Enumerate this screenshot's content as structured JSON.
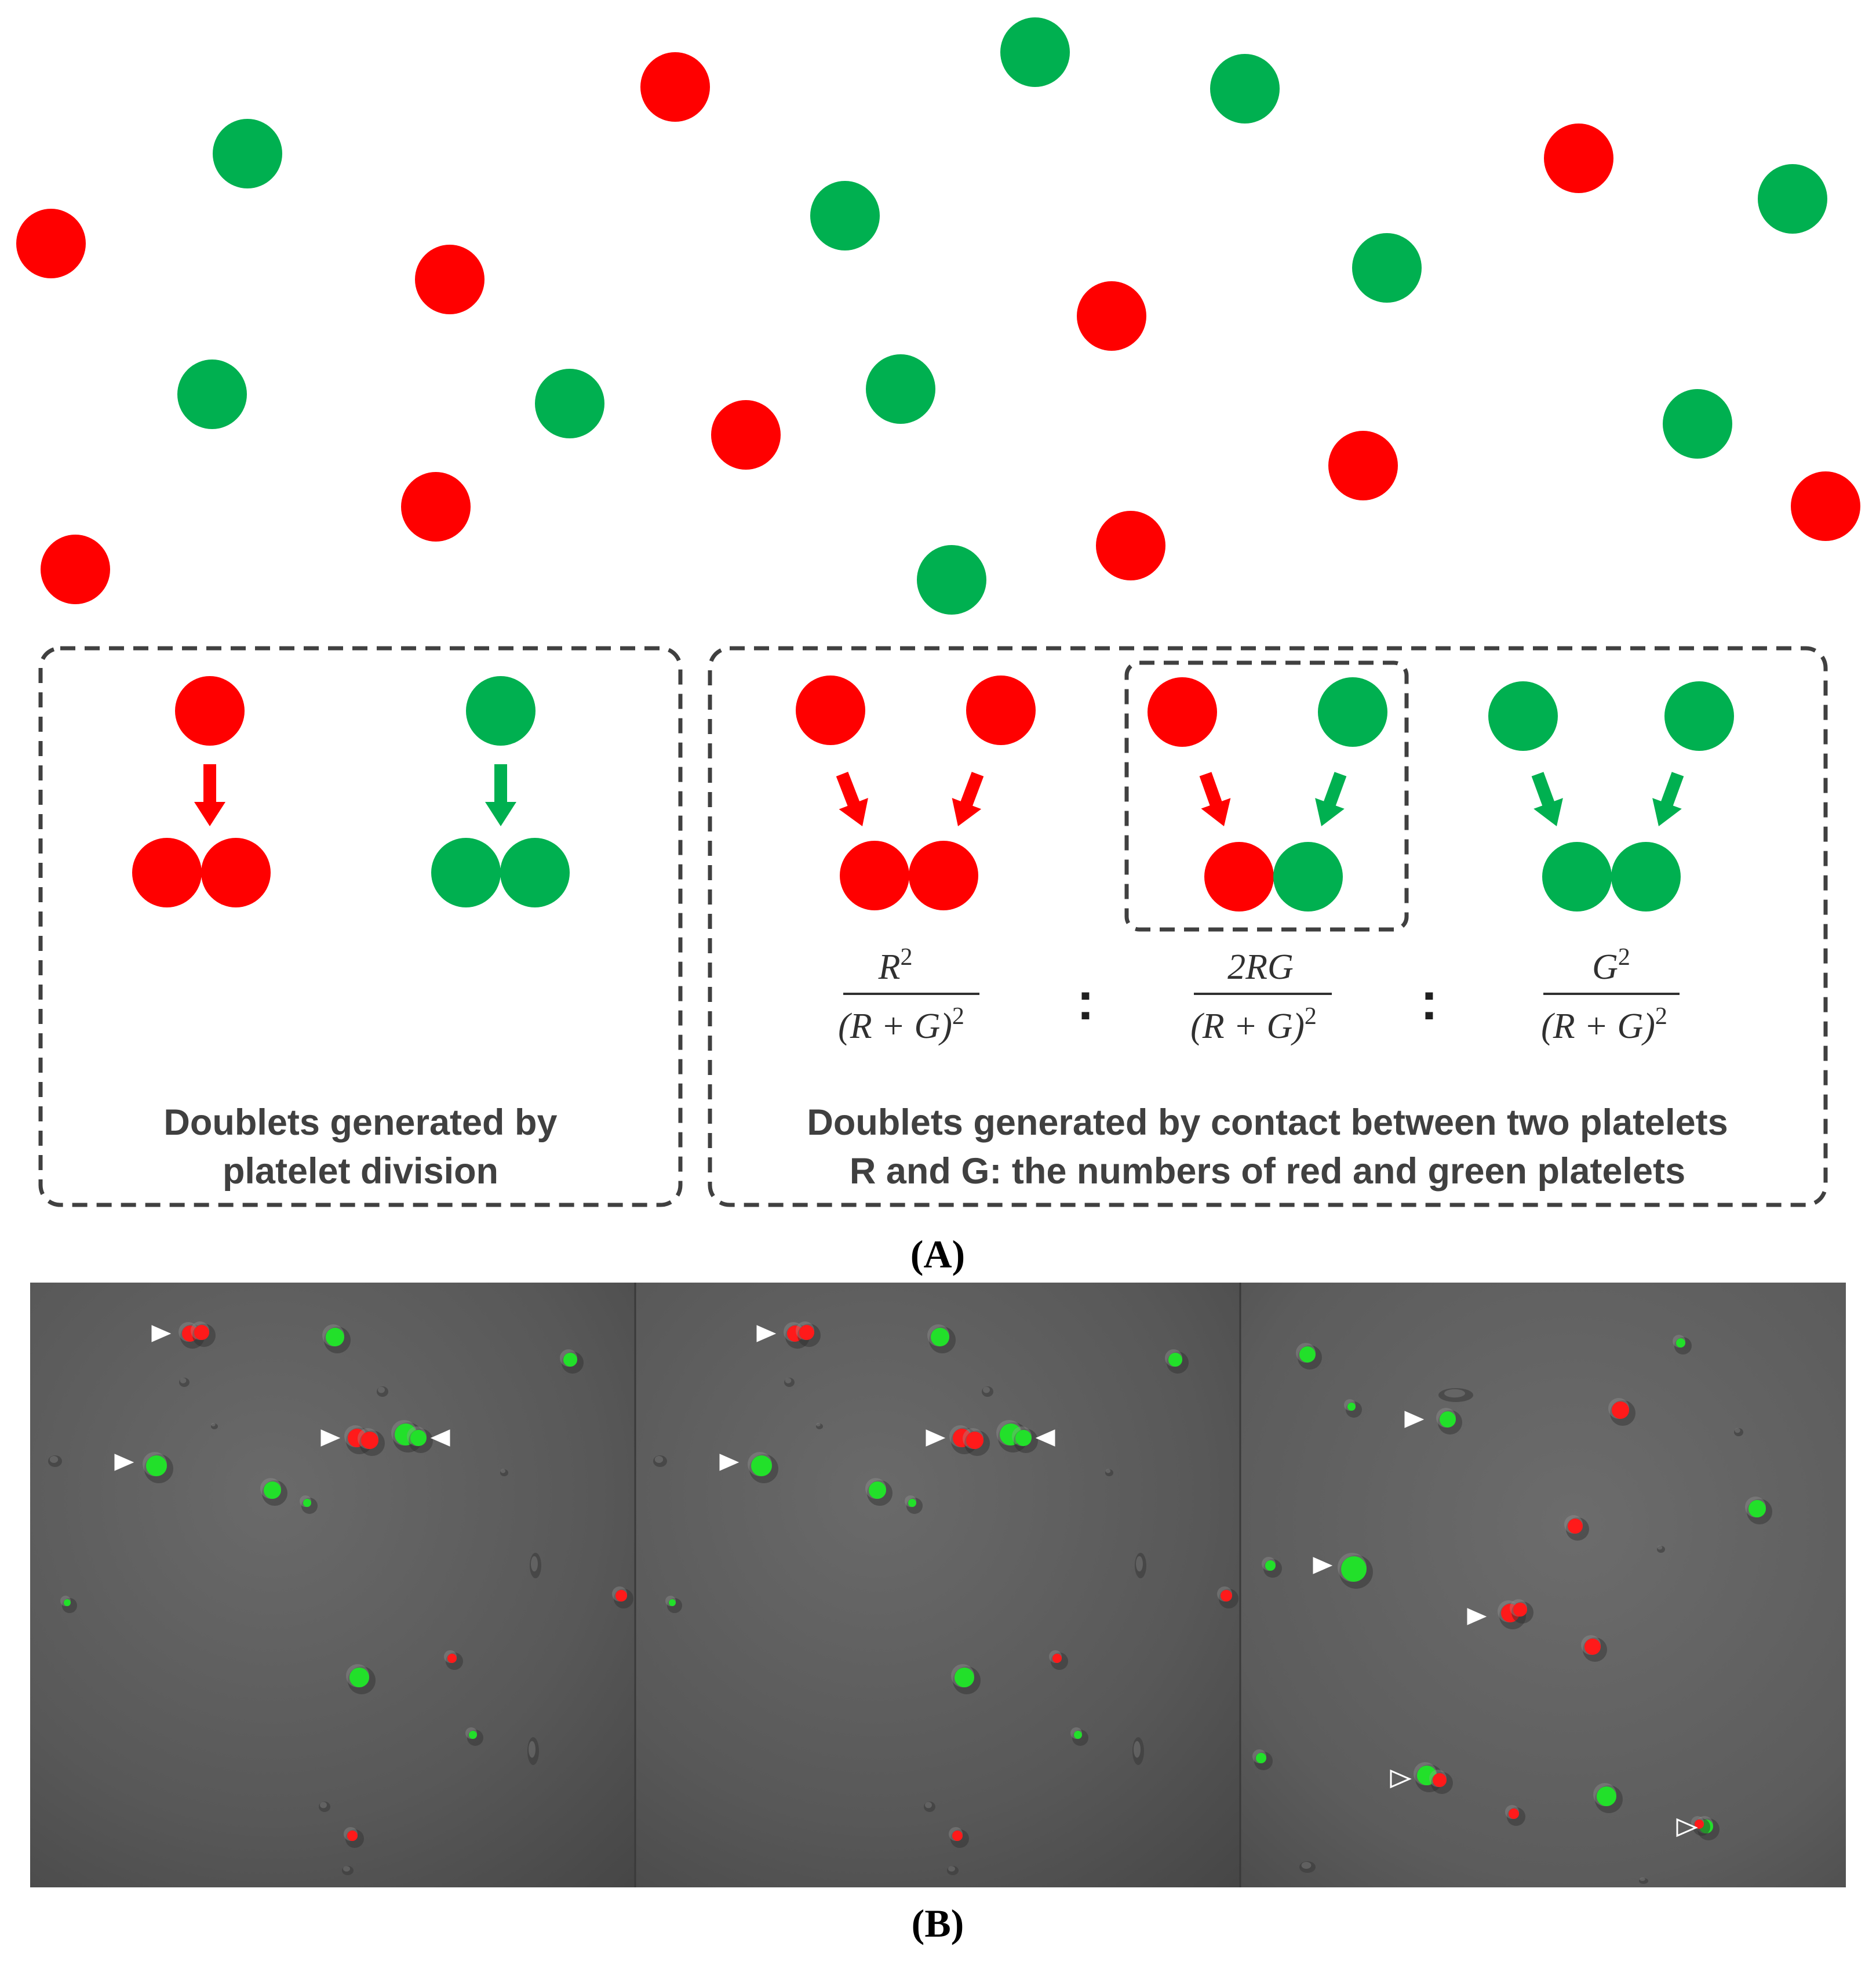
{
  "colors": {
    "red": "#ff0000",
    "green": "#00b050",
    "box_border": "#404040",
    "caption_text": "#404040",
    "micro_background": "#5a5a5a"
  },
  "panel_a": {
    "label": "(A)",
    "division_box": {
      "caption_line1": "Doublets generated by",
      "caption_line2": "platelet division"
    },
    "contact_box": {
      "caption_line1": "Doublets generated by contact between two platelets",
      "caption_line2": "R and G:  the numbers of red and green platelets",
      "ratio_separator": ":",
      "formulas": [
        {
          "numerator": "R",
          "numerator_exp": "2",
          "denominator": "(R + G)",
          "denominator_exp": "2"
        },
        {
          "numerator": "2RG",
          "numerator_exp": "",
          "denominator": "(R + G)",
          "denominator_exp": "2"
        },
        {
          "numerator": "G",
          "numerator_exp": "2",
          "denominator": "(R + G)",
          "denominator_exp": "2"
        }
      ]
    }
  },
  "panel_b": {
    "label": "(B)",
    "image_count": 3,
    "icons": {
      "filled_marker": "solid-triangle-arrowhead-icon",
      "open_marker": "open-triangle-arrowhead-icon"
    }
  }
}
